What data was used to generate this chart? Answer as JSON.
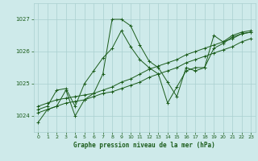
{
  "title": "Graphe pression niveau de la mer (hPa)",
  "bg_color": "#ceeaea",
  "grid_color": "#aacfcf",
  "line_color": "#1a5c1a",
  "xlim": [
    -0.5,
    23.5
  ],
  "ylim": [
    1023.5,
    1027.5
  ],
  "yticks": [
    1024,
    1025,
    1026,
    1027
  ],
  "xticks": [
    0,
    1,
    2,
    3,
    4,
    5,
    6,
    7,
    8,
    9,
    10,
    11,
    12,
    13,
    14,
    15,
    16,
    17,
    18,
    19,
    20,
    21,
    22,
    23
  ],
  "series": [
    [
      1023.8,
      1024.2,
      1024.3,
      1024.8,
      1024.0,
      1024.5,
      1024.7,
      1025.3,
      1027.0,
      1027.0,
      1026.8,
      1026.2,
      1025.7,
      1025.5,
      1025.05,
      1024.6,
      1025.5,
      1025.4,
      1025.5,
      1026.1,
      1026.25,
      1026.45,
      1026.55,
      1026.6
    ],
    [
      1024.3,
      1024.4,
      1024.5,
      1024.55,
      1024.6,
      1024.65,
      1024.7,
      1024.8,
      1024.9,
      1025.05,
      1025.15,
      1025.3,
      1025.45,
      1025.55,
      1025.65,
      1025.75,
      1025.9,
      1026.0,
      1026.1,
      1026.2,
      1026.3,
      1026.4,
      1026.55,
      1026.6
    ],
    [
      1024.1,
      1024.2,
      1024.3,
      1024.4,
      1024.45,
      1024.5,
      1024.6,
      1024.7,
      1024.75,
      1024.85,
      1024.95,
      1025.05,
      1025.2,
      1025.3,
      1025.4,
      1025.5,
      1025.65,
      1025.75,
      1025.85,
      1025.95,
      1026.05,
      1026.15,
      1026.3,
      1026.4
    ],
    [
      1024.2,
      1024.3,
      1024.8,
      1024.85,
      1024.3,
      1025.0,
      1025.4,
      1025.8,
      1026.1,
      1026.65,
      1026.15,
      1025.75,
      1025.5,
      1025.3,
      1024.4,
      1024.9,
      1025.4,
      1025.5,
      1025.5,
      1026.5,
      1026.3,
      1026.5,
      1026.6,
      1026.65
    ]
  ]
}
